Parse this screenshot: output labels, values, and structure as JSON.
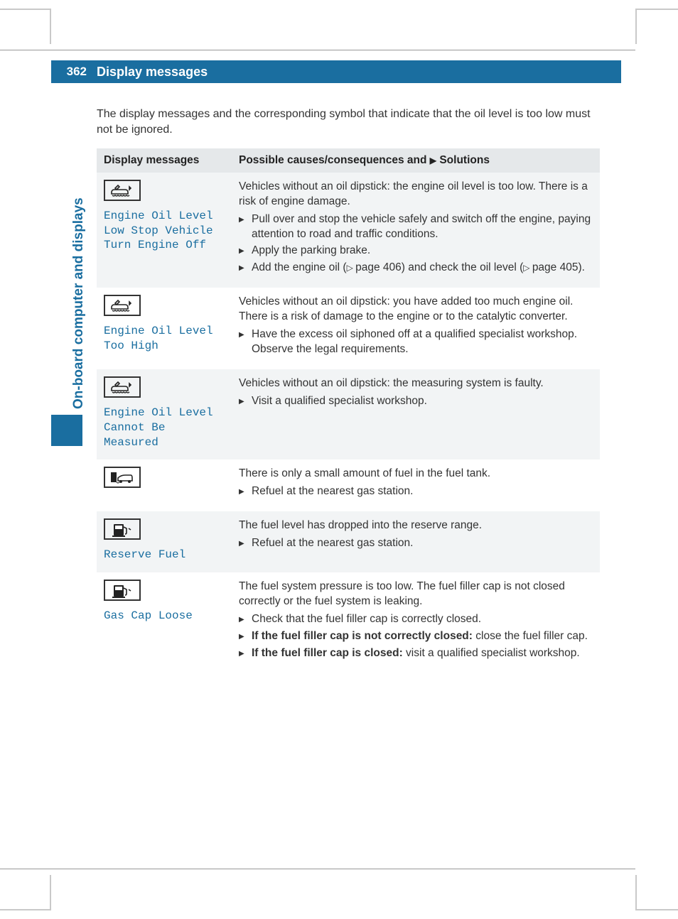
{
  "page_number": "362",
  "header_title": "Display messages",
  "side_tab": "On-board computer and displays",
  "intro": "The display messages and the corresponding symbol that indicate that the oil level is too low must not be ignored.",
  "table": {
    "header_left": "Display messages",
    "header_right_prefix": "Possible causes/consequences and ",
    "header_right_suffix": " Solutions"
  },
  "rows": [
    {
      "icon": "oil",
      "display": "Engine Oil Level\nLow Stop Vehicle\nTurn Engine Off",
      "intro_text": "Vehicles without an oil dipstick: the engine oil level is too low. There is a risk of engine damage.",
      "steps": [
        {
          "text": "Pull over and stop the vehicle safely and switch off the engine, paying attention to road and traffic conditions."
        },
        {
          "text": "Apply the parking brake."
        },
        {
          "text_pre": "Add the engine oil (",
          "ref1": "page 406",
          "text_mid": ") and check the oil level (",
          "ref2": "page 405",
          "text_post": ")."
        }
      ]
    },
    {
      "icon": "oil",
      "display": "Engine Oil Level\nToo High",
      "intro_text": "Vehicles without an oil dipstick: you have added too much engine oil. There is a risk of damage to the engine or to the catalytic converter.",
      "steps": [
        {
          "text": "Have the excess oil siphoned off at a qualified specialist workshop. Observe the legal requirements."
        }
      ]
    },
    {
      "icon": "oil",
      "display": "Engine Oil Level\nCannot Be Measured",
      "intro_text": "Vehicles without an oil dipstick: the measuring system is faulty.",
      "steps": [
        {
          "text": "Visit a qualified specialist workshop."
        }
      ]
    },
    {
      "icon": "fuel-car",
      "display": "",
      "intro_text": "There is only a small amount of fuel in the fuel tank.",
      "steps": [
        {
          "text": "Refuel at the nearest gas station."
        }
      ]
    },
    {
      "icon": "fuel-pump",
      "display": "Reserve Fuel",
      "intro_text": "The fuel level has dropped into the reserve range.",
      "steps": [
        {
          "text": "Refuel at the nearest gas station."
        }
      ]
    },
    {
      "icon": "fuel-pump",
      "display": "Gas Cap Loose",
      "intro_text": "The fuel system pressure is too low. The fuel filler cap is not closed correctly or the fuel system is leaking.",
      "steps": [
        {
          "text": "Check that the fuel filler cap is correctly closed."
        },
        {
          "bold": "If the fuel filler cap is not correctly closed:",
          "rest": " close the fuel filler cap."
        },
        {
          "bold": "If the fuel filler cap is closed:",
          "rest": " visit a qualified specialist workshop."
        }
      ]
    }
  ],
  "colors": {
    "brand": "#1a6ea0",
    "row_alt": "#f2f4f5",
    "header_row": "#e5e8ea",
    "text": "#333333"
  }
}
